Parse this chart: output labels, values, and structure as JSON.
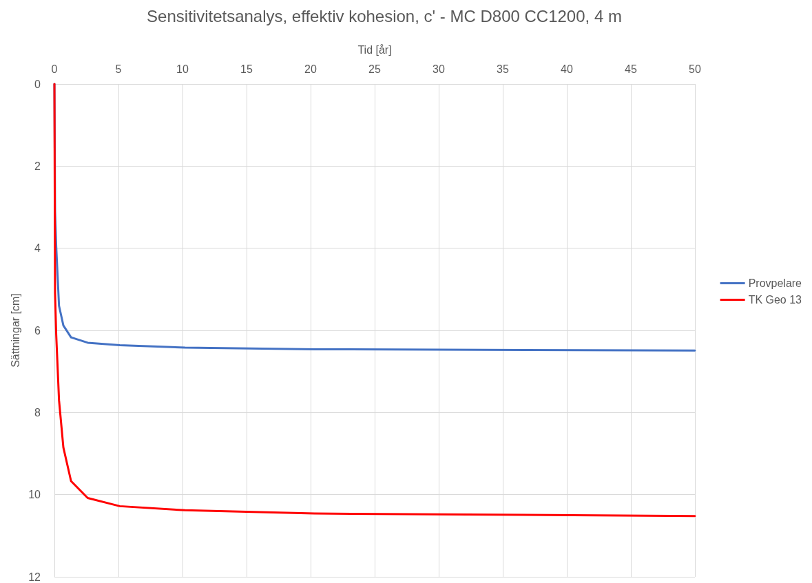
{
  "chart_data": {
    "type": "line",
    "title": "Sensitivitetsanalys, effektiv kohesion, c' - MC D800 CC1200, 4 m",
    "xlabel": "Tid [år]",
    "ylabel": "Sättningar [cm]",
    "x": [
      0,
      0.05,
      0.14,
      0.36,
      0.7,
      1.3,
      2.6,
      5.1,
      10.2,
      20.3,
      50
    ],
    "series": [
      {
        "name": "Provpelare",
        "color": "#4472c4",
        "values": [
          0,
          3.1,
          3.95,
          5.4,
          5.88,
          6.17,
          6.3,
          6.36,
          6.42,
          6.46,
          6.49
        ]
      },
      {
        "name": "TK Geo 13",
        "color": "#ff0000",
        "values": [
          0,
          5.1,
          6.1,
          7.7,
          8.85,
          9.67,
          10.08,
          10.28,
          10.38,
          10.46,
          10.52
        ]
      }
    ],
    "xlim": [
      0,
      50
    ],
    "xticks": [
      0,
      5,
      10,
      15,
      20,
      25,
      30,
      35,
      40,
      45,
      50
    ],
    "ylim": [
      12,
      0
    ],
    "yticks": [
      0,
      2,
      4,
      6,
      8,
      10,
      12
    ],
    "grid": true,
    "legend": "right",
    "marker": "none",
    "line_style": "solid"
  }
}
